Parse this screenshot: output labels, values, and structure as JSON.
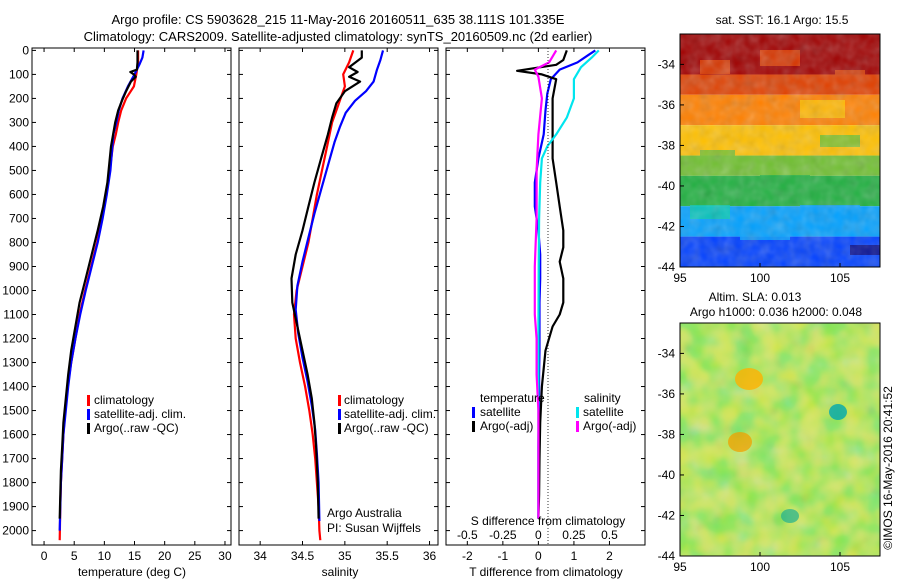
{
  "header": {
    "line1": "Argo profile: CS 5903628_215 11-May-2016 20160511_635 38.111S 101.335E",
    "line2": "Climatology: CARS2009. Satellite-adjusted climatology: synTS_20160509.nc (2d earlier)"
  },
  "colors": {
    "climatology": "#ff0000",
    "satellite": "#0000ff",
    "argo": "#000000",
    "s_satellite": "#00e5ee",
    "s_argo": "#ff00ff"
  },
  "panels": {
    "temperature": {
      "xlabel": "temperature (deg C)",
      "xticks": [
        "0",
        "5",
        "10",
        "15",
        "20",
        "25",
        "30"
      ],
      "legend": [
        "climatology",
        "satellite-adj. clim.",
        "Argo(..raw -QC)"
      ]
    },
    "salinity": {
      "xlabel": "salinity",
      "xticks": [
        "34",
        "34.5",
        "35",
        "35.5",
        "36"
      ],
      "legend": [
        "climatology",
        "satellite-adj. clim.",
        "Argo(..raw -QC)"
      ],
      "credit1": "Argo Australia",
      "credit2": "PI: Susan Wijffels"
    },
    "difference": {
      "xlabel": "T difference from climatology",
      "top_label": "S difference from climatology",
      "bottom_ticks": [
        "-2",
        "-1",
        "0",
        "1",
        "2"
      ],
      "top_ticks": [
        "-0.5",
        "-0.25",
        "0",
        "0.25",
        "0.5"
      ],
      "legend_t_title": "temperature",
      "legend_s_title": "salinity",
      "legend_t": [
        "satellite",
        "Argo(-adj)"
      ],
      "legend_s": [
        "satellite",
        "Argo(-adj)"
      ]
    },
    "depth_ticks": [
      "0",
      "100",
      "200",
      "300",
      "400",
      "500",
      "600",
      "700",
      "800",
      "900",
      "1000",
      "1100",
      "1200",
      "1300",
      "1400",
      "1500",
      "1600",
      "1700",
      "1800",
      "1900",
      "2000"
    ]
  },
  "maps": {
    "sst_title": "sat. SST: 16.1  Argo: 15.5",
    "sla_title1": "Altim. SLA: 0.013",
    "sla_title2": "Argo h1000: 0.036 h2000: 0.048",
    "lat_ticks": [
      "-34",
      "-36",
      "-38",
      "-40",
      "-42",
      "-44"
    ],
    "lon_ticks": [
      "95",
      "100",
      "105"
    ],
    "stamp": "©IMOS 16-May-2016 20:41:52"
  },
  "chart_data": [
    {
      "type": "line",
      "title": "",
      "xlabel": "temperature (deg C)",
      "ylabel": "",
      "xlim": [
        -2,
        31
      ],
      "ylim": [
        2060,
        -10
      ],
      "series": [
        {
          "name": "climatology",
          "x": [
            15.6,
            15.6,
            15.3,
            14.9,
            13.6,
            12.8,
            12.3,
            11.9,
            11.4,
            10.9,
            10.3,
            9.6,
            8.8,
            7.8,
            6.8,
            5.9,
            5.2,
            4.5,
            3.9,
            3.5,
            3.2,
            3.0,
            2.8,
            2.7,
            2.6
          ],
          "y": [
            0,
            50,
            100,
            150,
            200,
            250,
            300,
            350,
            400,
            500,
            600,
            700,
            800,
            900,
            1000,
            1100,
            1200,
            1300,
            1400,
            1500,
            1600,
            1700,
            1800,
            1900,
            2040
          ]
        },
        {
          "name": "satellite-adj. clim.",
          "x": [
            16.5,
            16.3,
            15.8,
            15.0,
            13.9,
            13.0,
            12.4,
            12.0,
            11.5,
            11.0,
            10.4,
            9.7,
            8.9,
            7.9,
            6.9,
            6.0,
            5.2,
            4.5,
            4.0,
            3.6,
            3.2,
            3.0,
            2.8,
            2.7,
            2.6
          ],
          "y": [
            0,
            30,
            60,
            100,
            150,
            200,
            250,
            300,
            350,
            500,
            600,
            700,
            800,
            900,
            1000,
            1100,
            1200,
            1300,
            1400,
            1500,
            1600,
            1700,
            1800,
            1900,
            2000
          ]
        },
        {
          "name": "Argo(..raw -QC)",
          "x": [
            15.5,
            15.5,
            15.4,
            14.3,
            14.9,
            15.2,
            14.4,
            13.6,
            12.9,
            12.3,
            11.8,
            11.1,
            10.5,
            9.8,
            8.9,
            7.9,
            6.9,
            5.9,
            5.2,
            4.5,
            4.0,
            3.6,
            3.2,
            3.0,
            2.8,
            2.7,
            2.6
          ],
          "y": [
            0,
            50,
            80,
            90,
            100,
            110,
            130,
            170,
            210,
            250,
            300,
            400,
            550,
            650,
            750,
            850,
            950,
            1050,
            1150,
            1250,
            1350,
            1450,
            1550,
            1650,
            1750,
            1850,
            1950
          ]
        }
      ]
    },
    {
      "type": "line",
      "title": "",
      "xlabel": "salinity",
      "ylabel": "",
      "xlim": [
        33.75,
        36.1
      ],
      "ylim": [
        2060,
        -10
      ],
      "series": [
        {
          "name": "climatology",
          "x": [
            35.1,
            35.05,
            34.98,
            35.0,
            34.95,
            34.9,
            34.85,
            34.82,
            34.79,
            34.73,
            34.67,
            34.62,
            34.57,
            34.5,
            34.43,
            34.4,
            34.42,
            34.47,
            34.53,
            34.58,
            34.62,
            34.65,
            34.67,
            34.69,
            34.7,
            34.71
          ],
          "y": [
            0,
            50,
            100,
            150,
            200,
            250,
            300,
            350,
            400,
            500,
            600,
            700,
            800,
            900,
            1000,
            1100,
            1200,
            1300,
            1400,
            1500,
            1600,
            1700,
            1800,
            1900,
            2000,
            2040
          ]
        },
        {
          "name": "satellite-adj. clim.",
          "x": [
            35.45,
            35.42,
            35.38,
            35.34,
            35.25,
            35.12,
            35.01,
            34.94,
            34.88,
            34.8,
            34.72,
            34.64,
            34.57,
            34.5,
            34.44,
            34.42,
            34.45,
            34.5,
            34.56,
            34.61,
            34.65,
            34.67,
            34.69,
            34.7
          ],
          "y": [
            0,
            40,
            80,
            130,
            170,
            210,
            260,
            320,
            380,
            480,
            580,
            680,
            780,
            880,
            980,
            1080,
            1180,
            1280,
            1380,
            1480,
            1580,
            1680,
            1800,
            1960
          ]
        },
        {
          "name": "Argo(..raw -QC)",
          "x": [
            35.2,
            35.2,
            35.05,
            35.15,
            35.05,
            35.18,
            35.0,
            34.9,
            34.85,
            34.8,
            34.72,
            34.64,
            34.57,
            34.5,
            34.42,
            34.37,
            34.38,
            34.44,
            34.5,
            34.56,
            34.61,
            34.64,
            34.66,
            34.68,
            34.69
          ],
          "y": [
            0,
            30,
            70,
            90,
            110,
            130,
            170,
            220,
            280,
            350,
            450,
            550,
            650,
            750,
            850,
            950,
            1050,
            1150,
            1250,
            1350,
            1450,
            1550,
            1650,
            1800,
            1950
          ]
        }
      ]
    },
    {
      "type": "line",
      "title": "",
      "xlabel": "T difference from climatology",
      "ylabel": "",
      "xlim": [
        -2.6,
        3.0
      ],
      "ylim": [
        2060,
        -10
      ],
      "series": [
        {
          "name": "temperature satellite",
          "x": [
            1.6,
            1.4,
            1.1,
            0.6,
            0.35,
            0.25,
            0.2,
            0.15,
            0.0,
            -0.1,
            -0.1,
            0.0,
            0.05,
            0.05,
            0.03,
            0.03,
            0.03,
            0.02,
            0.02,
            0.01,
            0.0,
            0.0,
            0.0,
            0.0
          ],
          "y": [
            0,
            20,
            50,
            80,
            120,
            180,
            250,
            350,
            450,
            550,
            650,
            750,
            850,
            950,
            1050,
            1150,
            1250,
            1350,
            1450,
            1550,
            1650,
            1750,
            1850,
            1950
          ]
        },
        {
          "name": "temperature Argo(-adj)",
          "x": [
            0.8,
            0.7,
            0.5,
            -0.6,
            0.1,
            0.5,
            0.4,
            0.4,
            0.4,
            0.5,
            0.6,
            0.7,
            0.7,
            0.6,
            0.7,
            0.7,
            0.6,
            0.4,
            0.2,
            0.1,
            0.05,
            0.03,
            0.02,
            0.0
          ],
          "y": [
            0,
            40,
            60,
            85,
            100,
            120,
            200,
            300,
            450,
            550,
            650,
            750,
            820,
            880,
            950,
            1050,
            1100,
            1150,
            1250,
            1400,
            1550,
            1700,
            1850,
            1950
          ]
        },
        {
          "name": "salinity satellite",
          "x": [
            1.7,
            1.5,
            1.2,
            1.0,
            1.0,
            0.8,
            0.5,
            0.25,
            0.1,
            0.05,
            0.02,
            0.01,
            0.0,
            0.0,
            0.0
          ],
          "y": [
            0,
            30,
            70,
            120,
            200,
            280,
            350,
            400,
            450,
            550,
            700,
            900,
            1200,
            1600,
            1950
          ]
        },
        {
          "name": "salinity Argo(-adj)",
          "x": [
            0.5,
            0.3,
            -0.1,
            0.0,
            0.1,
            0.0,
            -0.05,
            -0.05,
            -0.1,
            -0.1,
            -0.05,
            -0.05,
            0.0,
            0.0,
            0.0
          ],
          "y": [
            0,
            50,
            80,
            110,
            200,
            350,
            500,
            700,
            900,
            1100,
            1200,
            1350,
            1500,
            1700,
            1950
          ]
        }
      ]
    },
    {
      "type": "heatmap",
      "title": "sat. SST: 16.1  Argo: 15.5",
      "x_range": [
        95,
        107.5
      ],
      "y_range": [
        -44,
        -32.5
      ],
      "colormap": [
        "#00007f",
        "#0040ff",
        "#00a0ff",
        "#00c8b0",
        "#20b040",
        "#70c030",
        "#c8d020",
        "#ffc000",
        "#ff8000",
        "#e04000",
        "#c00000",
        "#8b0000"
      ],
      "row_bands": [
        {
          "lat_from": -32.5,
          "lat_to": -34.5,
          "color": "#a00000"
        },
        {
          "lat_from": -34.5,
          "lat_to": -35.5,
          "color": "#e04000"
        },
        {
          "lat_from": -35.5,
          "lat_to": -37.0,
          "color": "#ff8000"
        },
        {
          "lat_from": -37.0,
          "lat_to": -38.5,
          "color": "#ffc000"
        },
        {
          "lat_from": -38.5,
          "lat_to": -39.5,
          "color": "#70c030"
        },
        {
          "lat_from": -39.5,
          "lat_to": -41.0,
          "color": "#20b040"
        },
        {
          "lat_from": -41.0,
          "lat_to": -42.5,
          "color": "#00a0ff"
        },
        {
          "lat_from": -42.5,
          "lat_to": -44.0,
          "color": "#0040ff"
        }
      ]
    },
    {
      "type": "heatmap",
      "title": "Altim. SLA: 0.013",
      "x_range": [
        95,
        107.5
      ],
      "y_range": [
        -44,
        -32.5
      ],
      "colormap": [
        "#00b0a0",
        "#40c060",
        "#a0d040",
        "#e0e020",
        "#ffb000"
      ],
      "base_color": "#b8dc48"
    }
  ]
}
